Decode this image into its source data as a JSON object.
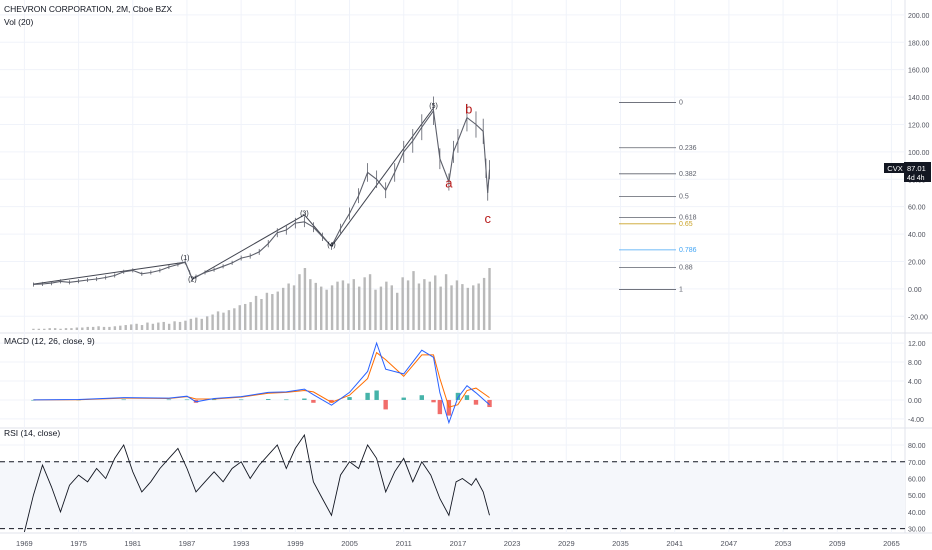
{
  "header": {
    "symbol_title": "CHEVRON CORPORATION, 2M, Cboe BZX",
    "volume_label": "Vol (20)"
  },
  "price_badge": {
    "ticker": "CVX",
    "price": "87.01",
    "countdown": "4d 4h",
    "color": "#131722"
  },
  "colors": {
    "grid": "#f0f3fa",
    "text": "#131722",
    "axis_text": "#50535e",
    "macd_line": "#2962ff",
    "signal_line": "#ff6d00",
    "hist_pos": "#26a69a",
    "hist_neg": "#ef5350",
    "volume": "#a8a8a8",
    "wave_red": "#b71c1c",
    "fib_gold": "#c9a227",
    "fib_blue": "#42a5f5",
    "rsi_band": "#f5f7fb"
  },
  "chart_data": [
    {
      "type": "line",
      "panel": "price",
      "y_ticks": [
        "200.00",
        "180.00",
        "160.00",
        "140.00",
        "120.00",
        "100.00",
        "80.00",
        "60.00",
        "40.00",
        "20.00",
        "0.00",
        "-20.00"
      ],
      "ylim": [
        -30,
        205
      ],
      "x_ticks": [
        "1969",
        "1975",
        "1981",
        "1987",
        "1993",
        "1999",
        "2005",
        "2011",
        "2017",
        "2023",
        "2029",
        "2035",
        "2041",
        "2047",
        "2053",
        "2059",
        "2065"
      ],
      "xlim": [
        1966.3,
        2066.5
      ],
      "close_series": [
        [
          1970,
          3.2
        ],
        [
          1971,
          3.6
        ],
        [
          1972,
          4.2
        ],
        [
          1973,
          5.5
        ],
        [
          1974,
          4.8
        ],
        [
          1975,
          5.6
        ],
        [
          1976,
          6.5
        ],
        [
          1977,
          7.2
        ],
        [
          1978,
          8.3
        ],
        [
          1979,
          9.8
        ],
        [
          1980,
          12.5
        ],
        [
          1981,
          13.5
        ],
        [
          1982,
          11.0
        ],
        [
          1983,
          12.0
        ],
        [
          1984,
          13.5
        ],
        [
          1985,
          16.0
        ],
        [
          1986,
          17.8
        ],
        [
          1986.8,
          19.5
        ],
        [
          1987.3,
          12.0
        ],
        [
          1987.6,
          7.0
        ],
        [
          1988,
          9.0
        ],
        [
          1989,
          12.0
        ],
        [
          1990,
          14.0
        ],
        [
          1991,
          16.5
        ],
        [
          1992,
          19.0
        ],
        [
          1993,
          22.5
        ],
        [
          1994,
          24.0
        ],
        [
          1995,
          27.0
        ],
        [
          1996,
          33.0
        ],
        [
          1997,
          41.0
        ],
        [
          1998,
          43.0
        ],
        [
          1999,
          48.0
        ],
        [
          2000,
          49.0
        ],
        [
          2001,
          45.0
        ],
        [
          2002,
          38.0
        ],
        [
          2003,
          31.0
        ],
        [
          2004,
          44.0
        ],
        [
          2005,
          55.0
        ],
        [
          2006,
          68.0
        ],
        [
          2007,
          85.0
        ],
        [
          2008,
          80.0
        ],
        [
          2009,
          72.0
        ],
        [
          2010,
          85.0
        ],
        [
          2011,
          100.0
        ],
        [
          2012,
          108.0
        ],
        [
          2013,
          118.0
        ],
        [
          2014.3,
          130.0
        ],
        [
          2015,
          95.0
        ],
        [
          2016,
          78.0
        ],
        [
          2016.5,
          100.0
        ],
        [
          2017,
          108.0
        ],
        [
          2018,
          125.0
        ],
        [
          2019,
          120.0
        ],
        [
          2019.8,
          115.0
        ],
        [
          2020.1,
          88.0
        ],
        [
          2020.3,
          70.0
        ],
        [
          2020.5,
          87.0
        ]
      ],
      "wave_labels": [
        {
          "label": "(1)",
          "x": 1986.8,
          "y": 21.0
        },
        {
          "label": "(2)",
          "x": 1987.6,
          "y": 5.5
        },
        {
          "label": "(3)",
          "x": 2000.0,
          "y": 53.5
        },
        {
          "label": "(4)",
          "x": 2003.0,
          "y": 30.5
        },
        {
          "label": "(5)",
          "x": 2014.3,
          "y": 132.0
        },
        {
          "label": "a",
          "x": 2016.0,
          "y": 74.0
        },
        {
          "label": "b",
          "x": 2018.2,
          "y": 128.0
        },
        {
          "label": "c",
          "x": 2020.3,
          "y": 48.0
        }
      ],
      "wave_path": [
        [
          1970,
          3.5
        ],
        [
          1986.8,
          19.5
        ],
        [
          1987.6,
          7.0
        ],
        [
          2000,
          54.0
        ],
        [
          2003,
          31.0
        ],
        [
          2014.3,
          132.0
        ]
      ],
      "fib_levels": [
        {
          "label": "0",
          "y": 136.0
        },
        {
          "label": "0.236",
          "y": 103.0
        },
        {
          "label": "0.382",
          "y": 84.0
        },
        {
          "label": "0.5",
          "y": 67.5
        },
        {
          "label": "0.618",
          "y": 52.0
        },
        {
          "label": "0.65",
          "y": 47.5
        },
        {
          "label": "0.786",
          "y": 28.5
        },
        {
          "label": "0.88",
          "y": 15.5
        },
        {
          "label": "1",
          "y": -0.5
        }
      ],
      "volume_relative": [
        0.02,
        0.02,
        0.02,
        0.03,
        0.03,
        0.02,
        0.03,
        0.03,
        0.04,
        0.04,
        0.05,
        0.05,
        0.06,
        0.05,
        0.05,
        0.06,
        0.07,
        0.08,
        0.09,
        0.1,
        0.08,
        0.12,
        0.1,
        0.12,
        0.13,
        0.1,
        0.14,
        0.13,
        0.15,
        0.18,
        0.2,
        0.18,
        0.22,
        0.25,
        0.3,
        0.28,
        0.32,
        0.35,
        0.4,
        0.42,
        0.45,
        0.55,
        0.5,
        0.6,
        0.58,
        0.62,
        0.68,
        0.75,
        0.72,
        0.9,
        1.0,
        0.82,
        0.76,
        0.7,
        0.65,
        0.72,
        0.78,
        0.8,
        0.75,
        0.82,
        0.7,
        0.85,
        0.9,
        0.65,
        0.7,
        0.78,
        0.72,
        0.6,
        0.85,
        0.8,
        0.95,
        0.75,
        0.82,
        0.78,
        0.88,
        0.7,
        0.9,
        0.72,
        0.8,
        0.74,
        0.68,
        0.72,
        0.75,
        0.84,
        1.0
      ]
    },
    {
      "type": "line",
      "panel": "macd",
      "title": "MACD (12, 26, close, 9)",
      "y_ticks": [
        "12.00",
        "8.00",
        "4.00",
        "0.00",
        "-4.00"
      ],
      "ylim": [
        -5.5,
        13.5
      ],
      "macd": [
        [
          1970,
          0.0
        ],
        [
          1975,
          0.1
        ],
        [
          1980,
          0.5
        ],
        [
          1985,
          0.4
        ],
        [
          1987,
          0.8
        ],
        [
          1988,
          -0.4
        ],
        [
          1990,
          0.3
        ],
        [
          1993,
          0.7
        ],
        [
          1996,
          1.6
        ],
        [
          1998,
          1.7
        ],
        [
          2000,
          2.3
        ],
        [
          2001,
          1.1
        ],
        [
          2003,
          -1.1
        ],
        [
          2005,
          1.6
        ],
        [
          2007,
          6.0
        ],
        [
          2008,
          12.0
        ],
        [
          2009,
          6.5
        ],
        [
          2011,
          5.5
        ],
        [
          2013,
          10.5
        ],
        [
          2014.3,
          9.0
        ],
        [
          2015,
          1.5
        ],
        [
          2016,
          -4.8
        ],
        [
          2017,
          0.5
        ],
        [
          2018,
          3.0
        ],
        [
          2019,
          1.5
        ],
        [
          2020.5,
          -1.0
        ]
      ],
      "signal": [
        [
          1970,
          0.0
        ],
        [
          1975,
          0.05
        ],
        [
          1980,
          0.4
        ],
        [
          1985,
          0.3
        ],
        [
          1987,
          0.7
        ],
        [
          1988,
          0.2
        ],
        [
          1990,
          0.2
        ],
        [
          1993,
          0.6
        ],
        [
          1996,
          1.4
        ],
        [
          1998,
          1.6
        ],
        [
          2000,
          2.0
        ],
        [
          2001,
          1.7
        ],
        [
          2003,
          -0.5
        ],
        [
          2005,
          1.0
        ],
        [
          2007,
          4.5
        ],
        [
          2008,
          10.0
        ],
        [
          2009,
          8.5
        ],
        [
          2011,
          5.0
        ],
        [
          2013,
          9.5
        ],
        [
          2014.3,
          9.5
        ],
        [
          2015,
          4.5
        ],
        [
          2016,
          -1.5
        ],
        [
          2017,
          -1.0
        ],
        [
          2018,
          2.0
        ],
        [
          2019,
          2.5
        ],
        [
          2020.5,
          0.5
        ]
      ]
    },
    {
      "type": "line",
      "panel": "rsi",
      "title": "RSI (14, close)",
      "y_ticks": [
        "80.00",
        "70.00",
        "60.00",
        "50.00",
        "40.00",
        "30.00"
      ],
      "ylim": [
        28,
        89
      ],
      "band": [
        30,
        70
      ],
      "rsi": [
        [
          1969,
          28
        ],
        [
          1970,
          50
        ],
        [
          1971,
          68
        ],
        [
          1972,
          55
        ],
        [
          1973,
          40
        ],
        [
          1974,
          56
        ],
        [
          1975,
          62
        ],
        [
          1976,
          58
        ],
        [
          1977,
          66
        ],
        [
          1978,
          60
        ],
        [
          1979,
          72
        ],
        [
          1980,
          80
        ],
        [
          1981,
          64
        ],
        [
          1982,
          52
        ],
        [
          1983,
          58
        ],
        [
          1984,
          66
        ],
        [
          1985,
          72
        ],
        [
          1986,
          78
        ],
        [
          1987,
          66
        ],
        [
          1988,
          52
        ],
        [
          1989,
          58
        ],
        [
          1990,
          64
        ],
        [
          1991,
          58
        ],
        [
          1992,
          66
        ],
        [
          1993,
          70
        ],
        [
          1994,
          60
        ],
        [
          1995,
          68
        ],
        [
          1996,
          74
        ],
        [
          1997,
          80
        ],
        [
          1998,
          66
        ],
        [
          1999,
          78
        ],
        [
          2000,
          86
        ],
        [
          2001,
          58
        ],
        [
          2002,
          48
        ],
        [
          2003,
          38
        ],
        [
          2004,
          62
        ],
        [
          2005,
          70
        ],
        [
          2006,
          66
        ],
        [
          2007,
          80
        ],
        [
          2008,
          72
        ],
        [
          2009,
          52
        ],
        [
          2010,
          64
        ],
        [
          2011,
          72
        ],
        [
          2012,
          58
        ],
        [
          2013,
          70
        ],
        [
          2014,
          62
        ],
        [
          2015,
          48
        ],
        [
          2016,
          38
        ],
        [
          2016.8,
          58
        ],
        [
          2017.5,
          60
        ],
        [
          2018.5,
          56
        ],
        [
          2019,
          60
        ],
        [
          2019.8,
          52
        ],
        [
          2020.5,
          38
        ]
      ]
    }
  ]
}
